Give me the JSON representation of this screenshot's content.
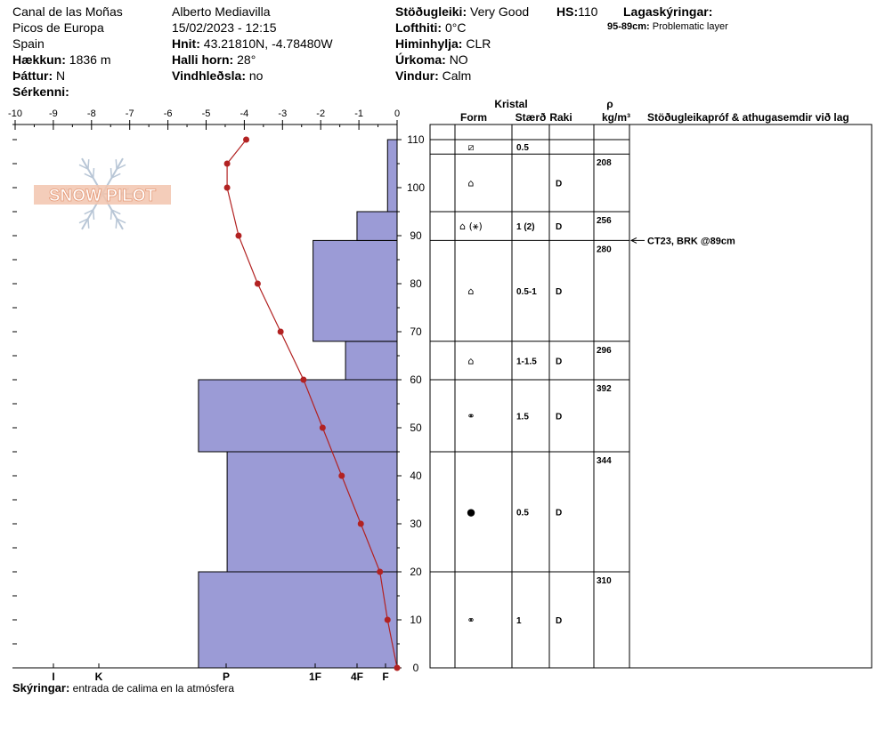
{
  "header": {
    "location": "Canal de las Moñas",
    "range": "Picos de Europa",
    "country": "Spain",
    "elevation_label": "Hækkun:",
    "elevation": "1836 m",
    "aspect_label": "Þáttur:",
    "aspect": "N",
    "features_label": "Sérkenni:",
    "observer": "Alberto Mediavilla",
    "datetime": "15/02/2023 - 12:15",
    "coords_label": "Hnit:",
    "coords": "43.21810N, -4.78480W",
    "slope_label": "Halli horn:",
    "slope": "28°",
    "wind_loading_label": "Vindhleðsla:",
    "wind_loading": "no",
    "stability_label": "Stöðugleiki:",
    "stability": "Very Good",
    "hs_label": "HS:",
    "hs": "110",
    "air_temp_label": "Lofthiti:",
    "air_temp": "0°C",
    "sky_label": "Himinhylja:",
    "sky": "CLR",
    "precip_label": "Úrkoma:",
    "precip": "NO",
    "wind_label": "Vindur:",
    "wind": "Calm",
    "layer_notes_label": "Lagaskýringar:",
    "layer_note_range": "95-89cm:",
    "layer_note_text": "Problematic layer"
  },
  "logo_text": "SNOW PILOT",
  "columns": {
    "crystal": "Kristal",
    "form": "Form",
    "size": "Stærð",
    "moisture": "Raki",
    "density_symbol": "ρ",
    "density_unit": "kg/m³",
    "tests": "Stöðugleikapróf & athugasemdir við lag"
  },
  "footer": {
    "notes_label": "Skýringar:",
    "notes": "entrada de calima en la atmósfera"
  },
  "colors": {
    "hardness_fill": "#9b9bd6",
    "temp_line": "#b22222"
  },
  "chart_data": {
    "type": "snow-profile",
    "temp_axis": {
      "range": [
        -10,
        0
      ],
      "ticks": [
        "-10",
        "-9",
        "-8",
        "-7",
        "-6",
        "-5",
        "-4",
        "-3",
        "-2",
        "-1",
        "0"
      ]
    },
    "height_axis": {
      "range": [
        0,
        110
      ],
      "ticks": [
        "0",
        "10",
        "20",
        "30",
        "40",
        "50",
        "60",
        "70",
        "80",
        "90",
        "100",
        "110"
      ]
    },
    "hardness_labels": [
      "I",
      "K",
      "P",
      "1F",
      "4F",
      "F"
    ],
    "hardness_layers": [
      {
        "bottom": 0,
        "top": 20,
        "temp_extent": -5.2
      },
      {
        "bottom": 20,
        "top": 45,
        "temp_extent": -4.45
      },
      {
        "bottom": 45,
        "top": 60,
        "temp_extent": -5.2
      },
      {
        "bottom": 60,
        "top": 68,
        "temp_extent": -1.35
      },
      {
        "bottom": 68,
        "top": 89,
        "temp_extent": -2.2
      },
      {
        "bottom": 89,
        "top": 95,
        "temp_extent": -1.05
      },
      {
        "bottom": 95,
        "top": 110,
        "temp_extent": -0.25
      }
    ],
    "temperature_profile": [
      {
        "h": 0,
        "t": 0
      },
      {
        "h": 10,
        "t": -0.25
      },
      {
        "h": 20,
        "t": -0.45
      },
      {
        "h": 30,
        "t": -0.95
      },
      {
        "h": 40,
        "t": -1.45
      },
      {
        "h": 50,
        "t": -1.95
      },
      {
        "h": 60,
        "t": -2.45
      },
      {
        "h": 70,
        "t": -3.05
      },
      {
        "h": 80,
        "t": -3.65
      },
      {
        "h": 90,
        "t": -4.15
      },
      {
        "h": 100,
        "t": -4.45
      },
      {
        "h": 105,
        "t": -4.45
      },
      {
        "h": 110,
        "t": -3.95
      }
    ],
    "layers": [
      {
        "top": 110,
        "bottom": 107,
        "form": "⧄",
        "size": "0.5",
        "moisture": "",
        "density": ""
      },
      {
        "top": 107,
        "bottom": 95,
        "form": "⌂",
        "size": "",
        "moisture": "D",
        "density": "208"
      },
      {
        "top": 95,
        "bottom": 89,
        "form": "⌂ (⚹)",
        "size": "1 (2)",
        "moisture": "D",
        "density": "256"
      },
      {
        "top": 89,
        "bottom": 68,
        "form": "⌂",
        "size": "0.5-1",
        "moisture": "D",
        "density": "280"
      },
      {
        "top": 68,
        "bottom": 60,
        "form": "⌂",
        "size": "1-1.5",
        "moisture": "D",
        "density": "296"
      },
      {
        "top": 60,
        "bottom": 45,
        "form": "⚭",
        "size": "1.5",
        "moisture": "D",
        "density": "392"
      },
      {
        "top": 45,
        "bottom": 20,
        "form": "●",
        "size": "0.5",
        "moisture": "D",
        "density": "344"
      },
      {
        "top": 20,
        "bottom": 0,
        "form": "⚭",
        "size": "1",
        "moisture": "D",
        "density": "310"
      }
    ],
    "tests": [
      {
        "height": 89,
        "text": "CT23, BRK @89cm"
      }
    ]
  }
}
